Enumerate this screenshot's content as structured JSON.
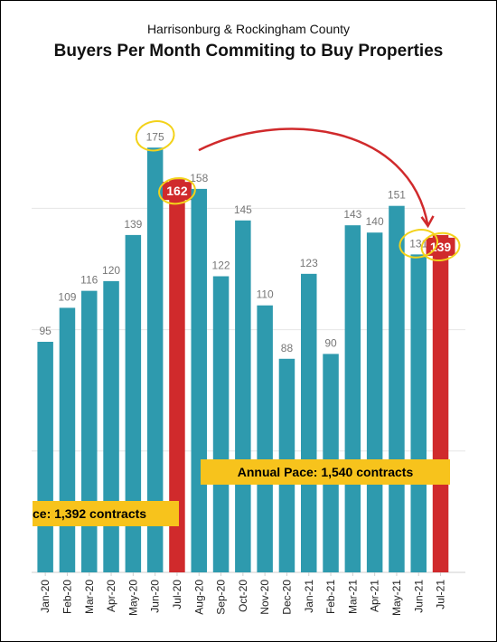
{
  "chart_data": {
    "type": "bar",
    "subtitle": "Harrisonburg & Rockingham County",
    "title": "Buyers Per Month Commiting to Buy Properties",
    "categories": [
      "Jan-20",
      "Feb-20",
      "Mar-20",
      "Apr-20",
      "May-20",
      "Jun-20",
      "Jul-20",
      "Aug-20",
      "Sep-20",
      "Oct-20",
      "Nov-20",
      "Dec-20",
      "Jan-21",
      "Feb-21",
      "Mar-21",
      "Apr-21",
      "May-21",
      "Jun-21",
      "Jul-21"
    ],
    "values": [
      95,
      109,
      116,
      120,
      139,
      175,
      162,
      158,
      122,
      145,
      110,
      88,
      123,
      90,
      143,
      140,
      151,
      131,
      139
    ],
    "highlighted": [
      "Jul-20",
      "Jul-21"
    ],
    "ylim": [
      0,
      190
    ],
    "grid": true,
    "colors": {
      "bar": "#2e9aae",
      "highlight": "#d02a2c",
      "pace": "#f7c31c",
      "circle": "#f3d21a",
      "arrow": "#d02a2c"
    },
    "annotations": [
      {
        "text": "ce: 1,392 contracts",
        "style": "yellow-box"
      },
      {
        "text": "Annual Pace: 1,540 contracts",
        "style": "yellow-box"
      }
    ]
  }
}
